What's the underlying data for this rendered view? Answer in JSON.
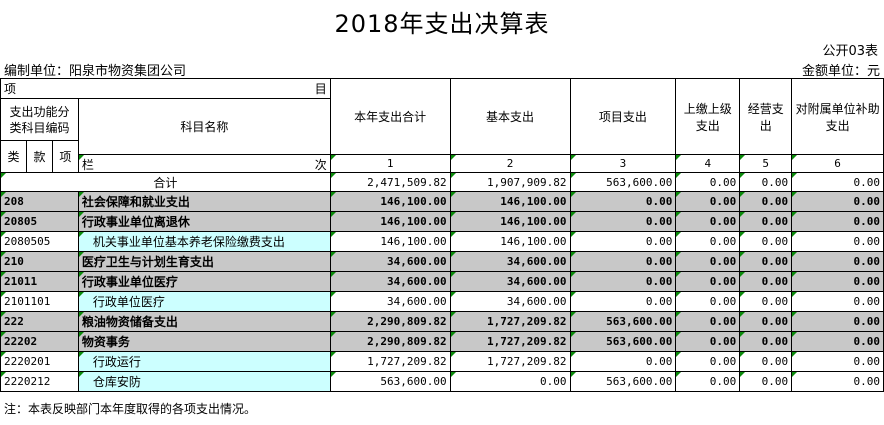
{
  "title": "2018年支出决算表",
  "form_no": "公开03表",
  "unit_left": "编制单位：阳泉市物资集团公司",
  "unit_right": "金额单位：元",
  "header": {
    "xiang": "项",
    "mu": "目",
    "func_code": "支出功能分类科目编码",
    "subject_name": "科目名称",
    "lei": "类",
    "kuan": "款",
    "xiang2": "项",
    "lan": "栏",
    "ci": "次",
    "columns": [
      "本年支出合计",
      "基本支出",
      "项目支出",
      "上缴上级支出",
      "经营支出",
      "对附属单位补助支出"
    ],
    "col_nums": [
      "1",
      "2",
      "3",
      "4",
      "5",
      "6"
    ]
  },
  "total": {
    "label": "合计",
    "values": [
      "2,471,509.82",
      "1,907,909.82",
      "563,600.00",
      "0.00",
      "0.00",
      "0.00"
    ]
  },
  "rows": [
    {
      "code": "208",
      "name": "社会保障和就业支出",
      "values": [
        "146,100.00",
        "146,100.00",
        "0.00",
        "0.00",
        "0.00",
        "0.00"
      ]
    },
    {
      "code": "20805",
      "name": "行政事业单位离退休",
      "values": [
        "146,100.00",
        "146,100.00",
        "0.00",
        "0.00",
        "0.00",
        "0.00"
      ]
    },
    {
      "code": "2080505",
      "name": "机关事业单位基本养老保险缴费支出",
      "values": [
        "146,100.00",
        "146,100.00",
        "0.00",
        "0.00",
        "0.00",
        "0.00"
      ]
    },
    {
      "code": "210",
      "name": "医疗卫生与计划生育支出",
      "values": [
        "34,600.00",
        "34,600.00",
        "0.00",
        "0.00",
        "0.00",
        "0.00"
      ]
    },
    {
      "code": "21011",
      "name": "行政事业单位医疗",
      "values": [
        "34,600.00",
        "34,600.00",
        "0.00",
        "0.00",
        "0.00",
        "0.00"
      ]
    },
    {
      "code": "2101101",
      "name": "行政单位医疗",
      "values": [
        "34,600.00",
        "34,600.00",
        "0.00",
        "0.00",
        "0.00",
        "0.00"
      ]
    },
    {
      "code": "222",
      "name": "粮油物资储备支出",
      "values": [
        "2,290,809.82",
        "1,727,209.82",
        "563,600.00",
        "0.00",
        "0.00",
        "0.00"
      ]
    },
    {
      "code": "22202",
      "name": "物资事务",
      "values": [
        "2,290,809.82",
        "1,727,209.82",
        "563,600.00",
        "0.00",
        "0.00",
        "0.00"
      ]
    },
    {
      "code": "2220201",
      "name": "行政运行",
      "values": [
        "1,727,209.82",
        "1,727,209.82",
        "0.00",
        "0.00",
        "0.00",
        "0.00"
      ]
    },
    {
      "code": "2220212",
      "name": "仓库安防",
      "values": [
        "563,600.00",
        "0.00",
        "563,600.00",
        "0.00",
        "0.00",
        "0.00"
      ]
    }
  ],
  "note": "注：本表反映部门本年度取得的各项支出情况。"
}
